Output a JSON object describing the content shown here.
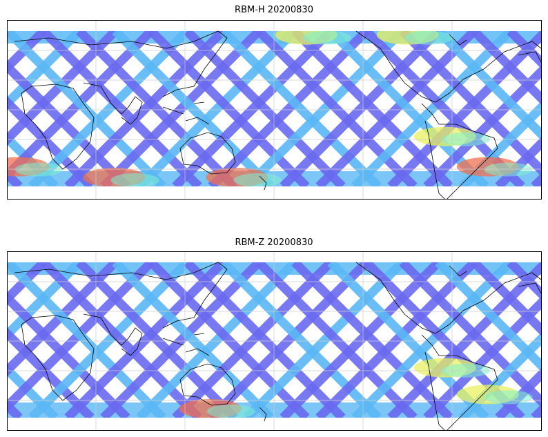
{
  "figure": {
    "panels": [
      {
        "title": "RBM-H 20200830",
        "variable": "RBM-H",
        "date": "20200830",
        "hotspots": [
          [
            0.02,
            0.82,
            "red"
          ],
          [
            0.2,
            0.88,
            "red"
          ],
          [
            0.43,
            0.88,
            "red"
          ],
          [
            0.56,
            0.08,
            "yellow"
          ],
          [
            0.75,
            0.08,
            "yellow"
          ],
          [
            0.9,
            0.82,
            "red"
          ],
          [
            0.82,
            0.65,
            "yellow"
          ]
        ]
      },
      {
        "title": "RBM-Z 20200830",
        "variable": "RBM-Z",
        "date": "20200830",
        "hotspots": [
          [
            0.38,
            0.88,
            "red"
          ],
          [
            0.82,
            0.65,
            "yellow"
          ],
          [
            0.9,
            0.8,
            "yellow"
          ]
        ]
      }
    ]
  },
  "colors": {
    "track_low": "#6a6af0",
    "track_mid": "#5bb8f5",
    "track_high_1": "#7ef0d0",
    "track_high_2": "#e8f060",
    "track_high_3": "#f07050",
    "coastline": "#000000",
    "grid": "#cccccc"
  }
}
